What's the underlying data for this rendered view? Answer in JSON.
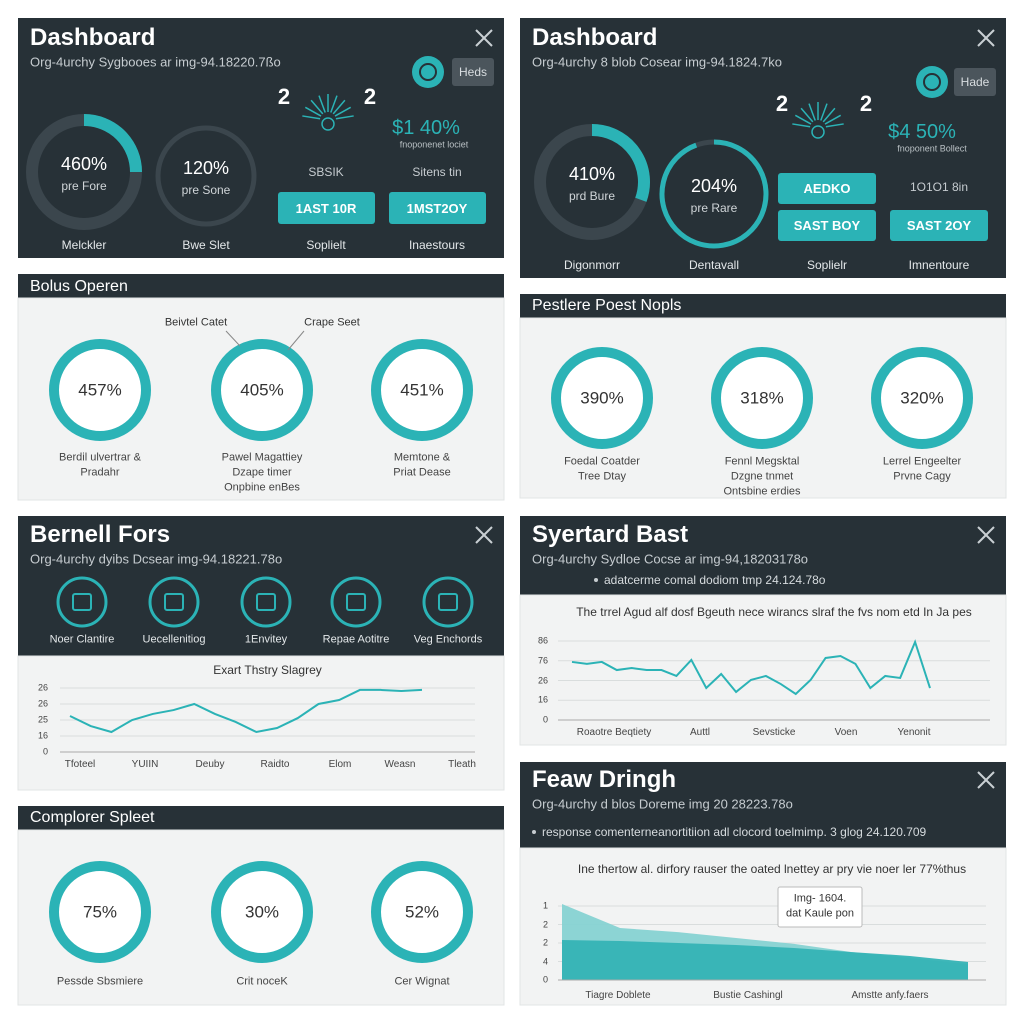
{
  "dash_left": {
    "title": "Dashboard",
    "subtitle": "Org-4urchy Sygbooes ar img-94.18220.7ßo",
    "button": "Heds",
    "rings": [
      {
        "value": "460%",
        "label": "pre Fore",
        "caption": "Melckler"
      },
      {
        "value": "120%",
        "label": "pre Sone",
        "caption": "Bwe Slet"
      }
    ],
    "counts": [
      "2",
      "2"
    ],
    "stat": "$1 40%",
    "stat_note": "fnoponenet lociet",
    "actions": [
      {
        "label": "SBSIK",
        "buttons": [
          "1AST 10R"
        ],
        "caption": "Soplielt"
      },
      {
        "label": "Sitens tin",
        "buttons": [
          "1MST2OY"
        ],
        "caption": "Inaestours"
      }
    ]
  },
  "dash_right": {
    "title": "Dashboard",
    "subtitle": "Org-4urchy 8 blob Cosear img-94.1824.7ko",
    "button": "Hade",
    "rings": [
      {
        "value": "410%",
        "label": "prd Bure",
        "caption": "Digonmorr"
      },
      {
        "value": "204%",
        "label": "pre Rare",
        "caption": "Dentavall"
      }
    ],
    "counts": [
      "2",
      "2"
    ],
    "stat": "$4 50%",
    "stat_note": "fnoponent Bollect",
    "actions": [
      {
        "buttons": [
          "AEDKO",
          "SAST BOY"
        ],
        "caption": "Soplielr"
      },
      {
        "label": "1O1O1 8in",
        "buttons": [
          "SAST 2OY"
        ],
        "caption": "Imnentoure"
      }
    ]
  },
  "rings_left": {
    "header": "Bolus Operen",
    "annotations": [
      "Beivtel Catet",
      "Crape Seet"
    ],
    "rings": [
      {
        "value": "457%",
        "caption": [
          "Berdil ulvertrar &",
          "Pradahr"
        ]
      },
      {
        "value": "405%",
        "caption": [
          "Pawel Magattiey",
          "Dzape timer",
          "Onpbine enBes"
        ]
      },
      {
        "value": "451%",
        "caption": [
          "Memtone &",
          "Priat Dease"
        ]
      }
    ]
  },
  "rings_right": {
    "header": "Pestlere Poest Nopls",
    "rings": [
      {
        "value": "390%",
        "caption": [
          "Foedal Coatder",
          "Tree Dtay"
        ]
      },
      {
        "value": "318%",
        "caption": [
          "Fennl Megsktal",
          "Dzgne tnmet",
          "Ontsbine erdies"
        ]
      },
      {
        "value": "320%",
        "caption": [
          "Lerrel Engeelter",
          "Prvne Cagy"
        ]
      }
    ]
  },
  "rings_bottom": {
    "header": "Complorer Spleet",
    "rings": [
      {
        "value": "75%",
        "caption": [
          "Pessde Sbsmiere"
        ]
      },
      {
        "value": "30%",
        "caption": [
          "Crit noceK"
        ]
      },
      {
        "value": "52%",
        "caption": [
          "Cer Wignat"
        ]
      }
    ]
  },
  "panel_c": {
    "title": "Bernell Fors",
    "subtitle": "Org-4urchy dyibs Dcsear img-94.18221.78o",
    "icons": [
      "Noer Clantire",
      "Uecellenitiog",
      "1Envitey",
      "Repae Aotitre",
      "Veg Enchords"
    ],
    "chart": {
      "type": "line",
      "title": "Exart Thstry Slagrey",
      "color": "#2bb3b6",
      "ylim": [
        0,
        4
      ],
      "yticks": [
        0,
        {
          "value": 1,
          "label": "16"
        },
        {
          "value": 2,
          "label": "25"
        },
        {
          "value": 3,
          "label": "26"
        },
        {
          "value": 4,
          "label": "26"
        }
      ],
      "xlabels": [
        "Tfoteel",
        "YUIIN",
        "Deuby",
        "Raidto",
        "Elom",
        "Weasn",
        "Tleath"
      ],
      "values": [
        2.25,
        1.62,
        1.25,
        2.0,
        2.38,
        2.62,
        3.0,
        2.38,
        1.88,
        1.25,
        1.5,
        2.12,
        3.0,
        3.25,
        3.88,
        3.88,
        3.81,
        3.88
      ],
      "grid": true
    }
  },
  "panel_g": {
    "title": "Syertard Bast",
    "subtitle": "Org-4urchy Sydloe Cocse ar img-94,18203178o",
    "note": "adatcerme comal dodiom tmp 24.124.78o",
    "chart": {
      "type": "line",
      "title": "The trrel Agud alf dosf Bgeuth nece wirancs slraf the fvs nom etd In Ja pes",
      "color": "#2bb3b6",
      "ylim": [
        0,
        4
      ],
      "yticks": [
        0,
        {
          "value": 1,
          "label": "16"
        },
        {
          "value": 2,
          "label": "26"
        },
        {
          "value": 3,
          "label": "76"
        },
        {
          "value": 4,
          "label": "86"
        }
      ],
      "xlabels": [
        "Roaotre Beqtiety",
        "Auttl",
        "Sevsticke",
        "Voen",
        "Yenonit"
      ],
      "values": [
        2.94,
        2.84,
        2.94,
        2.53,
        2.63,
        2.53,
        2.53,
        2.23,
        3.04,
        1.62,
        2.33,
        1.42,
        2.03,
        2.23,
        1.82,
        1.32,
        2.03,
        3.14,
        3.24,
        2.84,
        1.62,
        2.23,
        2.13,
        3.95,
        1.62
      ],
      "grid": true
    }
  },
  "panel_h": {
    "title": "Feaw Dringh",
    "subtitle": "Org-4urchy d blos Doreme img 20 28223.78o",
    "note": "response comenterneanortitiion adl clocord toelmimp. 3 glog 24.120.709",
    "chart": {
      "type": "area",
      "title": "Ine thertow al. dirfory rauser the oated lnettey ar pry vie noer ler 77%thus",
      "tooltip": [
        "Img- 1604.",
        "dat Kaule pon"
      ],
      "ylim": [
        0,
        4.2
      ],
      "yticks": [
        0,
        {
          "value": 1,
          "label": "4"
        },
        2,
        {
          "value": 3,
          "label": "2"
        },
        {
          "value": 4,
          "label": "1"
        }
      ],
      "xlabels": [
        "Tiagre Doblete",
        "Bustie Cashingl",
        "Amstte anfy.faers"
      ],
      "series": [
        {
          "color": "#86d2d2",
          "values": [
            4.11,
            2.81,
            2.59,
            2.27,
            1.95,
            1.51,
            1.19,
            0.86
          ]
        },
        {
          "color": "#35b3b5",
          "values": [
            2.16,
            2.11,
            2.0,
            1.89,
            1.73,
            1.51,
            1.3,
            0.97
          ]
        }
      ],
      "grid": true
    }
  }
}
